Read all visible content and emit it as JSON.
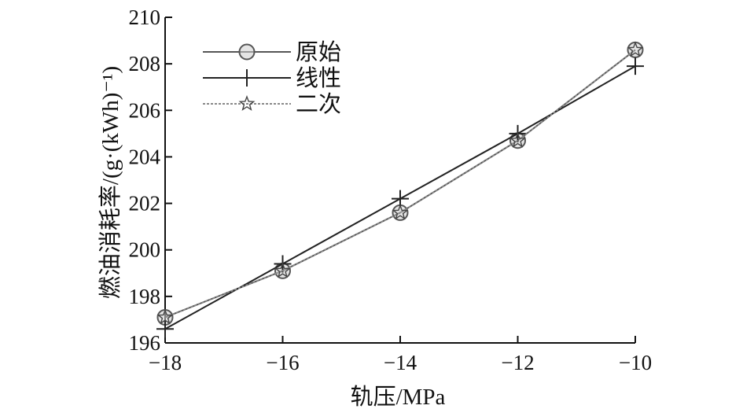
{
  "chart_data": {
    "type": "line",
    "title": "",
    "xlabel": "轨压/MPa",
    "ylabel": "燃油消耗率/(g·(kWh)⁻¹)",
    "xlim": [
      -18,
      -10
    ],
    "ylim": [
      196,
      210
    ],
    "x": [
      -18,
      -16,
      -14,
      -12,
      -10
    ],
    "xticks": [
      -18,
      -16,
      -14,
      -12,
      -10
    ],
    "xtick_labels": [
      "−18",
      "−16",
      "−14",
      "−12",
      "−10"
    ],
    "yticks": [
      196,
      198,
      200,
      202,
      204,
      206,
      208,
      210
    ],
    "ytick_labels": [
      "196",
      "198",
      "200",
      "202",
      "204",
      "206",
      "208",
      "210"
    ],
    "grid": false,
    "legend_position": "top-left",
    "series": [
      {
        "name": "原始",
        "marker": "circle",
        "line_style": "solid",
        "color": "#555555",
        "values": [
          197.1,
          199.1,
          201.6,
          204.7,
          208.6
        ]
      },
      {
        "name": "线性",
        "marker": "plus",
        "line_style": "solid",
        "color": "#222222",
        "values": [
          196.6,
          199.4,
          202.2,
          205.0,
          207.9
        ]
      },
      {
        "name": "二次",
        "marker": "star",
        "line_style": "dotted",
        "color": "#888888",
        "values": [
          197.1,
          199.1,
          201.6,
          204.7,
          208.6
        ]
      }
    ]
  }
}
